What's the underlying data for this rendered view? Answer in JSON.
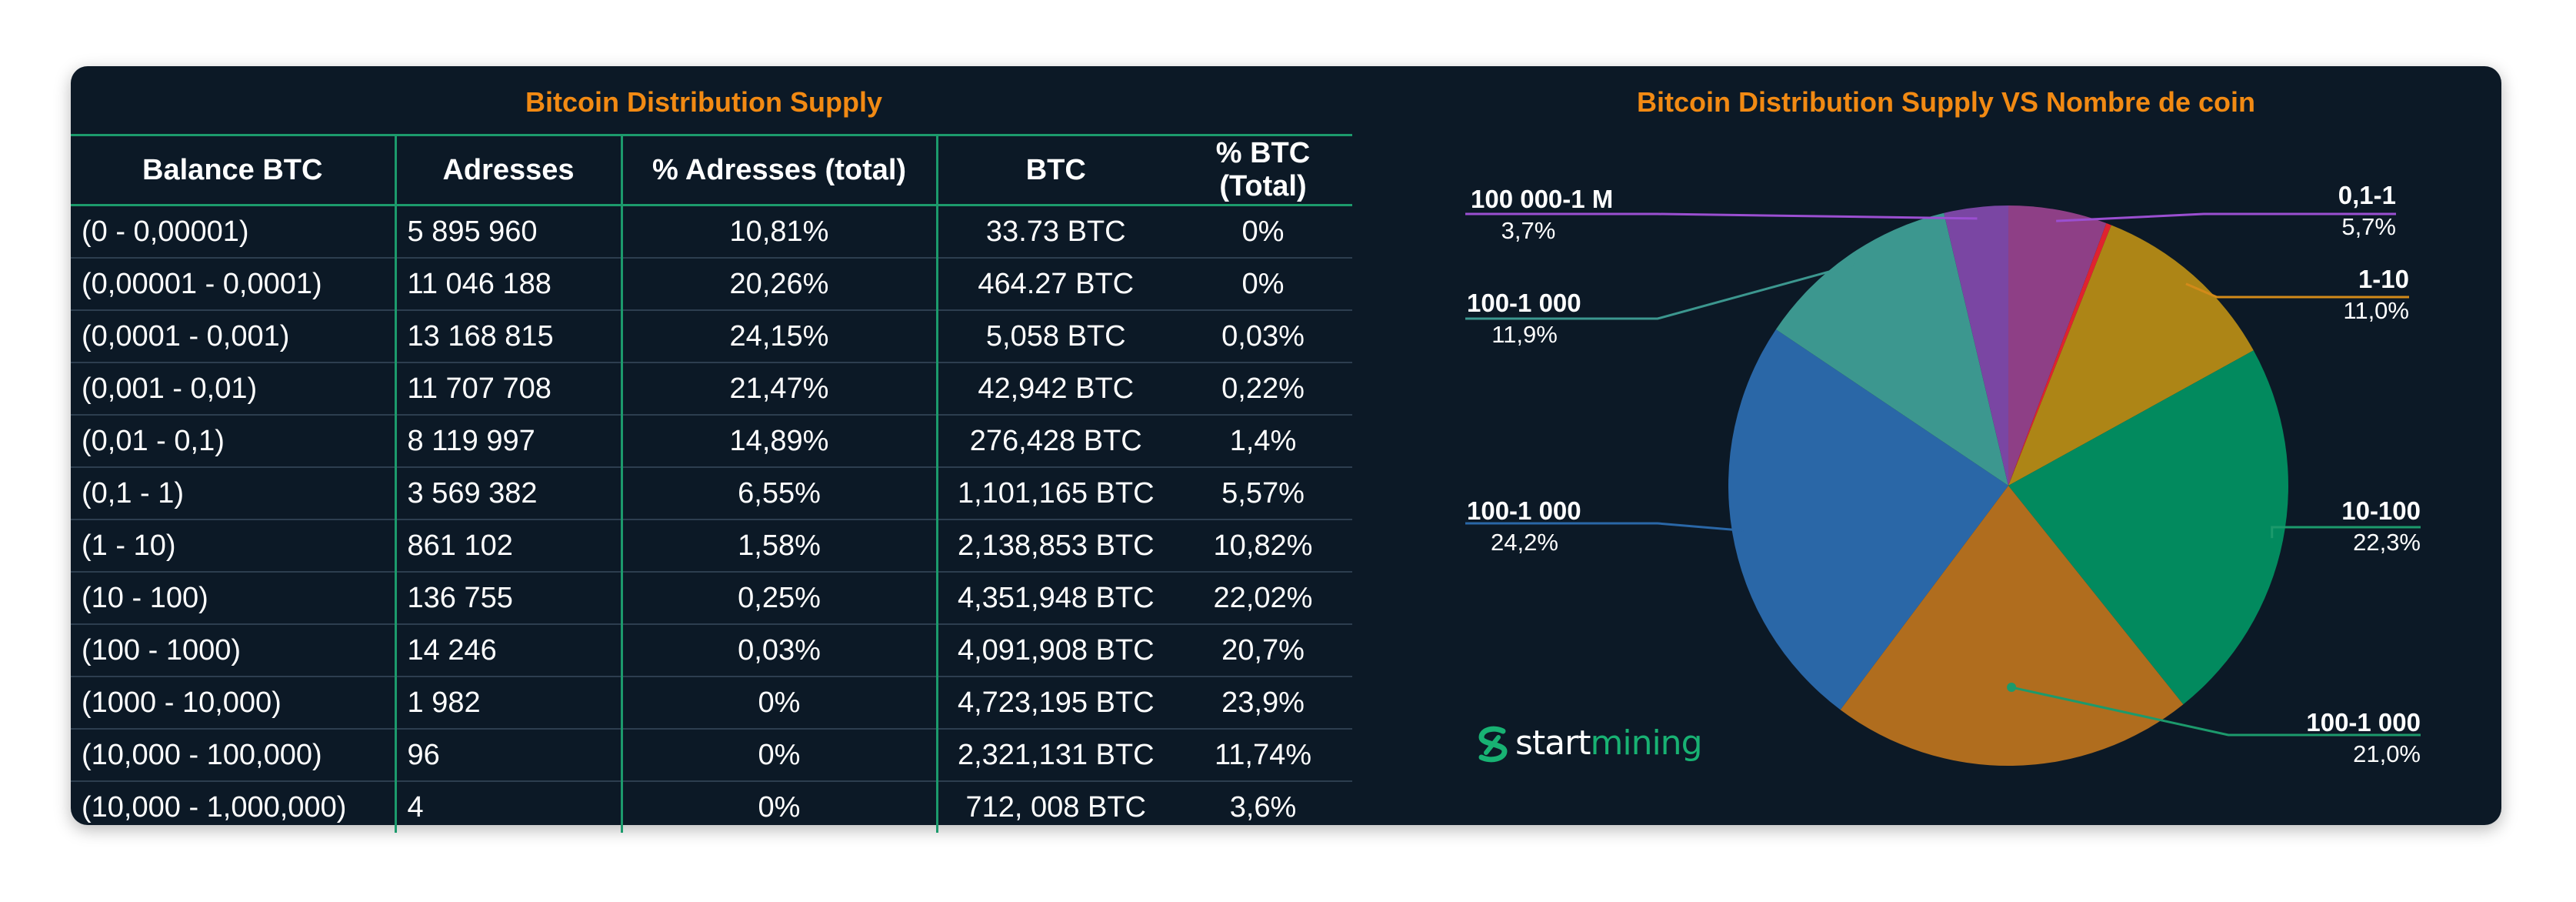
{
  "table": {
    "title": "Bitcoin Distribution Supply",
    "columns": [
      "Balance BTC",
      "Adresses",
      "% Adresses (total)",
      "BTC",
      "% BTC (Total)"
    ],
    "rows": [
      [
        "(0 - 0,00001)",
        "5 895 960",
        "10,81%",
        "33.73 BTC",
        "0%"
      ],
      [
        "(0,00001 - 0,0001)",
        "11 046 188",
        "20,26%",
        "464.27 BTC",
        "0%"
      ],
      [
        "(0,0001 - 0,001)",
        "13 168 815",
        "24,15%",
        "5,058 BTC",
        "0,03%"
      ],
      [
        "(0,001 - 0,01)",
        "11 707 708",
        "21,47%",
        "42,942 BTC",
        "0,22%"
      ],
      [
        "(0,01 - 0,1)",
        "8 119 997",
        "14,89%",
        "276,428 BTC",
        "1,4%"
      ],
      [
        "(0,1 - 1)",
        "3 569 382",
        "6,55%",
        "1,101,165 BTC",
        "5,57%"
      ],
      [
        "(1 - 10)",
        "861 102",
        "1,58%",
        "2,138,853 BTC",
        "10,82%"
      ],
      [
        "(10 - 100)",
        "136 755",
        "0,25%",
        "4,351,948 BTC",
        "22,02%"
      ],
      [
        "(100 - 1000)",
        "14 246",
        "0,03%",
        "4,091,908 BTC",
        "20,7%"
      ],
      [
        "(1000 - 10,000)",
        "1 982",
        "0%",
        "4,723,195 BTC",
        "23,9%"
      ],
      [
        "(10,000 - 100,000)",
        "96",
        "0%",
        "2,321,131 BTC",
        "11,74%"
      ],
      [
        "(10,000 - 1,000,000)",
        "4",
        "0%",
        "712, 008 BTC",
        "3,6%"
      ]
    ]
  },
  "chart_data": {
    "type": "pie",
    "title": "Bitcoin Distribution Supply VS Nombre de coin",
    "slices": [
      {
        "label": "0,1-1",
        "pct_label": "5,7%",
        "value": 5.7,
        "color": "#8e3f86"
      },
      {
        "label": "",
        "pct_label": "",
        "value": 0.3,
        "color": "#e0222f"
      },
      {
        "label": "1-10",
        "pct_label": "11,0%",
        "value": 11.0,
        "color": "#ad8516"
      },
      {
        "label": "10-100",
        "pct_label": "22,3%",
        "value": 22.3,
        "color": "#028a5e"
      },
      {
        "label": "100-1 000",
        "pct_label": "21,0%",
        "value": 21.0,
        "color": "#b06d1e"
      },
      {
        "label": "100-1 000",
        "pct_label": "24,2%",
        "value": 24.2,
        "color": "#2a67a7"
      },
      {
        "label": "100-1 000",
        "pct_label": "11,9%",
        "value": 11.9,
        "color": "#3c978f"
      },
      {
        "label": "100 000-1 M",
        "pct_label": "3,7%",
        "value": 3.7,
        "color": "#7a46a3"
      }
    ],
    "leader_colors": [
      "#9b4fd1",
      "#9b4fd1",
      "#d38a19",
      "#1c9a6c",
      "#1c9a6c",
      "#2a67a7",
      "#3c978f",
      "#9b4fd1"
    ]
  },
  "logo": {
    "part1": "start",
    "part2": "mining",
    "icon": "startmining-s-icon",
    "color": "#18b273"
  }
}
